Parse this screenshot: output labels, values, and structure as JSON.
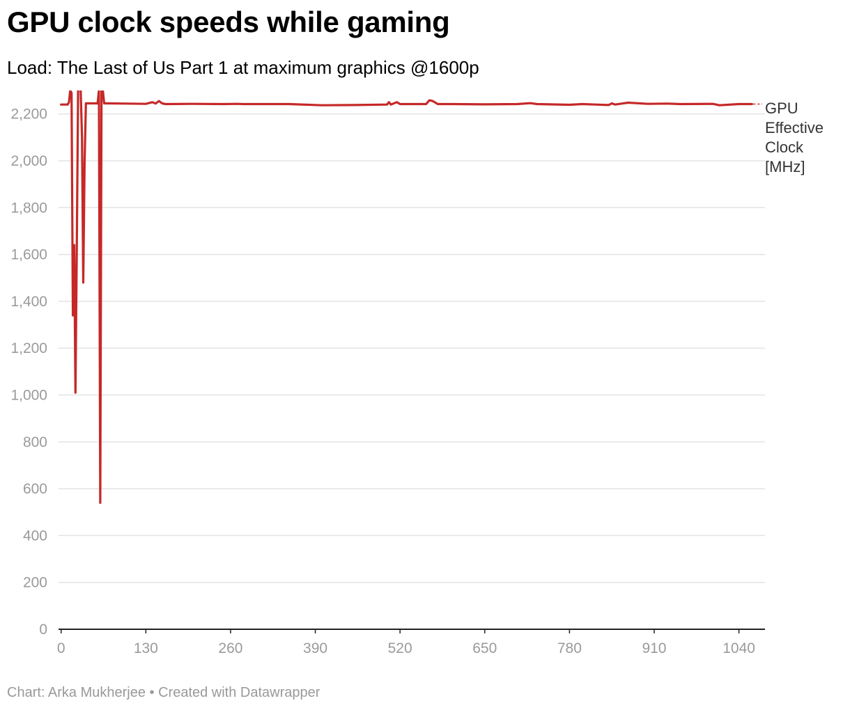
{
  "title": "GPU clock speeds while gaming",
  "subtitle": "Load: The Last of Us Part 1 at maximum graphics @1600p",
  "footer": "Chart: Arka Mukherjee • Created with Datawrapper",
  "colors": {
    "line": "#c62828",
    "grid": "#e3e3e3",
    "axis": "#222222"
  },
  "chart_data": {
    "type": "line",
    "title": "GPU clock speeds while gaming",
    "subtitle": "Load: The Last of Us Part 1 at maximum graphics @1600p",
    "xlabel": "",
    "ylabel": "",
    "xlim": [
      -4,
      1080
    ],
    "ylim": [
      0,
      2300
    ],
    "x_ticks": [
      0,
      130,
      260,
      390,
      520,
      650,
      780,
      910,
      1040
    ],
    "x_tick_labels": [
      "0",
      "130",
      "260",
      "390",
      "520",
      "650",
      "780",
      "910",
      "1040"
    ],
    "y_ticks": [
      0,
      200,
      400,
      600,
      800,
      1000,
      1200,
      1400,
      1600,
      1800,
      2000,
      2200
    ],
    "y_tick_labels": [
      "0",
      "200",
      "400",
      "600",
      "800",
      "1,000",
      "1,200",
      "1,400",
      "1,600",
      "1,800",
      "2,000",
      "2,200"
    ],
    "grid": true,
    "legend": "inline label at right end of line",
    "series": [
      {
        "name": "GPU Effective Clock [MHz]",
        "label_lines": [
          "GPU",
          "Effective",
          "Clock",
          "[MHz]"
        ],
        "x": [
          0,
          10,
          12,
          14,
          16,
          18,
          20,
          22,
          24,
          26,
          28,
          30,
          32,
          34,
          36,
          38,
          40,
          42,
          44,
          46,
          48,
          50,
          52,
          54,
          56,
          58,
          60,
          62,
          64,
          66,
          70,
          100,
          130,
          140,
          145,
          150,
          155,
          160,
          200,
          250,
          270,
          280,
          350,
          400,
          450,
          500,
          503,
          506,
          515,
          520,
          540,
          560,
          565,
          570,
          578,
          600,
          650,
          700,
          720,
          730,
          780,
          800,
          820,
          840,
          845,
          850,
          870,
          900,
          930,
          950,
          1000,
          1010,
          1040,
          1050,
          1060
        ],
        "y": [
          2240,
          2240,
          2250,
          2300,
          2290,
          1340,
          1640,
          1010,
          1620,
          2300,
          2310,
          2300,
          2100,
          1480,
          1990,
          2245,
          2245,
          2245,
          2245,
          2245,
          2245,
          2245,
          2245,
          2245,
          2245,
          2300,
          540,
          2300,
          2300,
          2245,
          2245,
          2244,
          2243,
          2250,
          2244,
          2255,
          2245,
          2242,
          2243,
          2242,
          2243,
          2242,
          2242,
          2237,
          2238,
          2240,
          2250,
          2240,
          2250,
          2242,
          2242,
          2242,
          2258,
          2255,
          2242,
          2242,
          2241,
          2242,
          2246,
          2242,
          2239,
          2242,
          2240,
          2238,
          2245,
          2240,
          2248,
          2243,
          2244,
          2242,
          2243,
          2237,
          2242,
          2242,
          2242
        ]
      }
    ]
  }
}
